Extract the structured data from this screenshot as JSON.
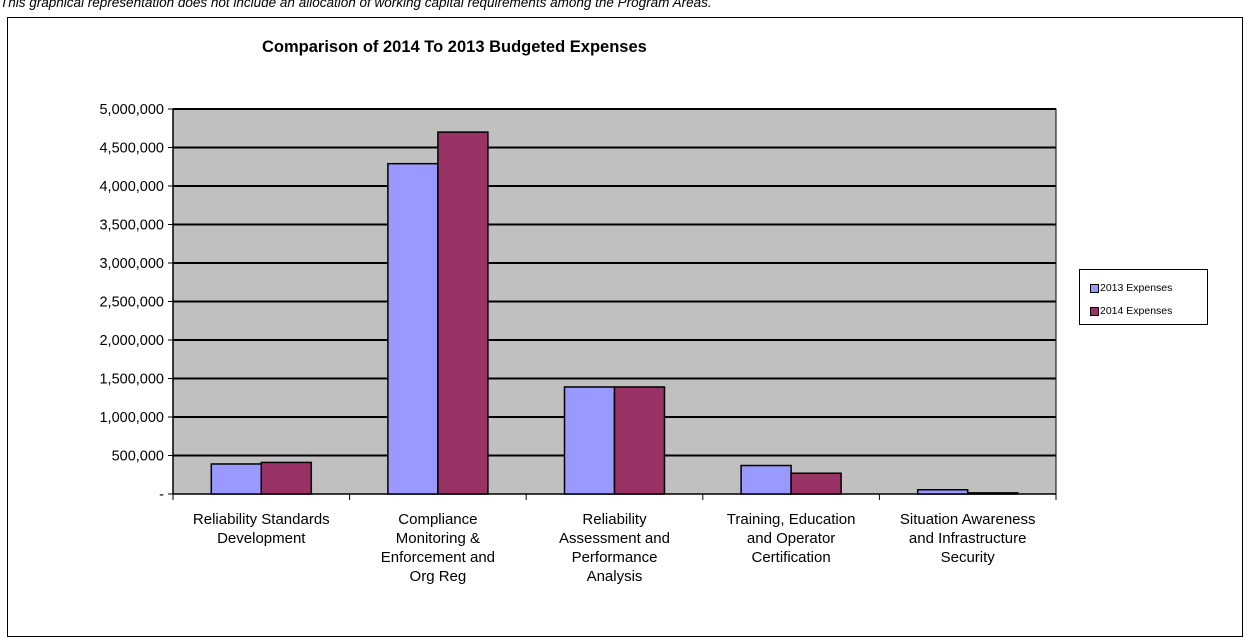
{
  "caption": "This graphical representation does not include an allocation of working capital requirements among the Program Areas.",
  "chart_data": {
    "type": "bar",
    "title": "Comparison of 2014 To 2013 Budgeted Expenses",
    "xlabel": "",
    "ylabel": "",
    "ylim": [
      0,
      5000000
    ],
    "yticks": [
      0,
      500000,
      1000000,
      1500000,
      2000000,
      2500000,
      3000000,
      3500000,
      4000000,
      4500000,
      5000000
    ],
    "ytick_labels": [
      "-",
      "500,000",
      "1,000,000",
      "1,500,000",
      "2,000,000",
      "2,500,000",
      "3,000,000",
      "3,500,000",
      "4,000,000",
      "4,500,000",
      "5,000,000"
    ],
    "categories": [
      [
        "Reliability Standards",
        "Development"
      ],
      [
        "Compliance",
        "Monitoring &",
        "Enforcement and",
        "Org Reg"
      ],
      [
        "Reliability",
        "Assessment and",
        "Performance",
        "Analysis"
      ],
      [
        "Training, Education",
        "and Operator",
        "Certification"
      ],
      [
        "Situation Awareness",
        "and Infrastructure",
        "Security"
      ]
    ],
    "series": [
      {
        "name": "2013 Expenses",
        "color": "#9999ff",
        "values": [
          390000,
          4290000,
          1390000,
          370000,
          55000
        ]
      },
      {
        "name": "2014 Expenses",
        "color": "#993366",
        "values": [
          410000,
          4700000,
          1390000,
          270000,
          15000
        ]
      }
    ],
    "grid": true,
    "plot_background": "#c0c0c0",
    "legend_position": "right"
  }
}
